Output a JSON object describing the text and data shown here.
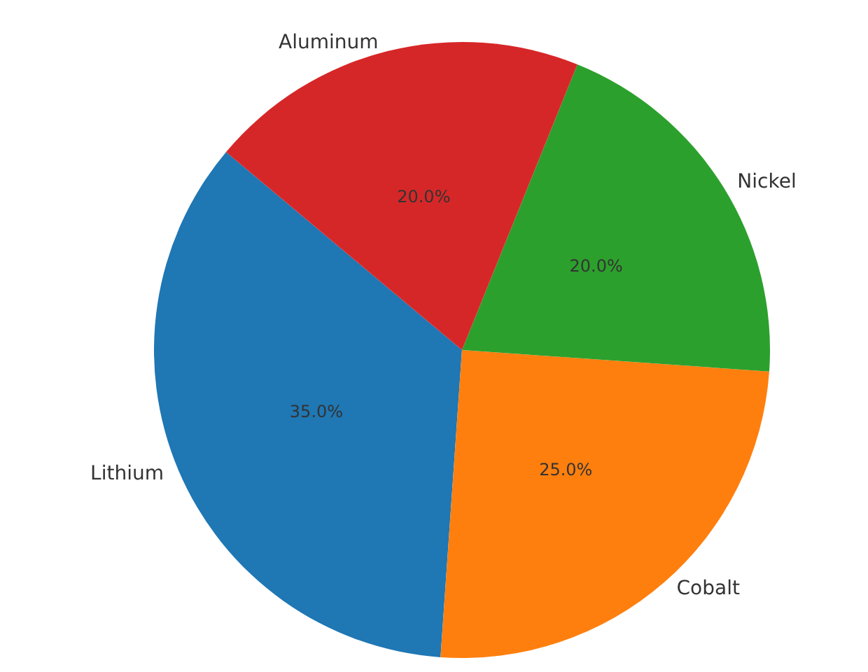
{
  "chart_data": {
    "type": "pie",
    "categories": [
      "Lithium",
      "Cobalt",
      "Nickel",
      "Aluminum"
    ],
    "values": [
      35,
      25,
      20,
      20
    ],
    "colors": [
      "#1f77b4",
      "#ff7f0e",
      "#2ca02c",
      "#d62728"
    ],
    "value_labels": [
      "35.0%",
      "25.0%",
      "20.0%",
      "20.0%"
    ],
    "legend": false
  }
}
